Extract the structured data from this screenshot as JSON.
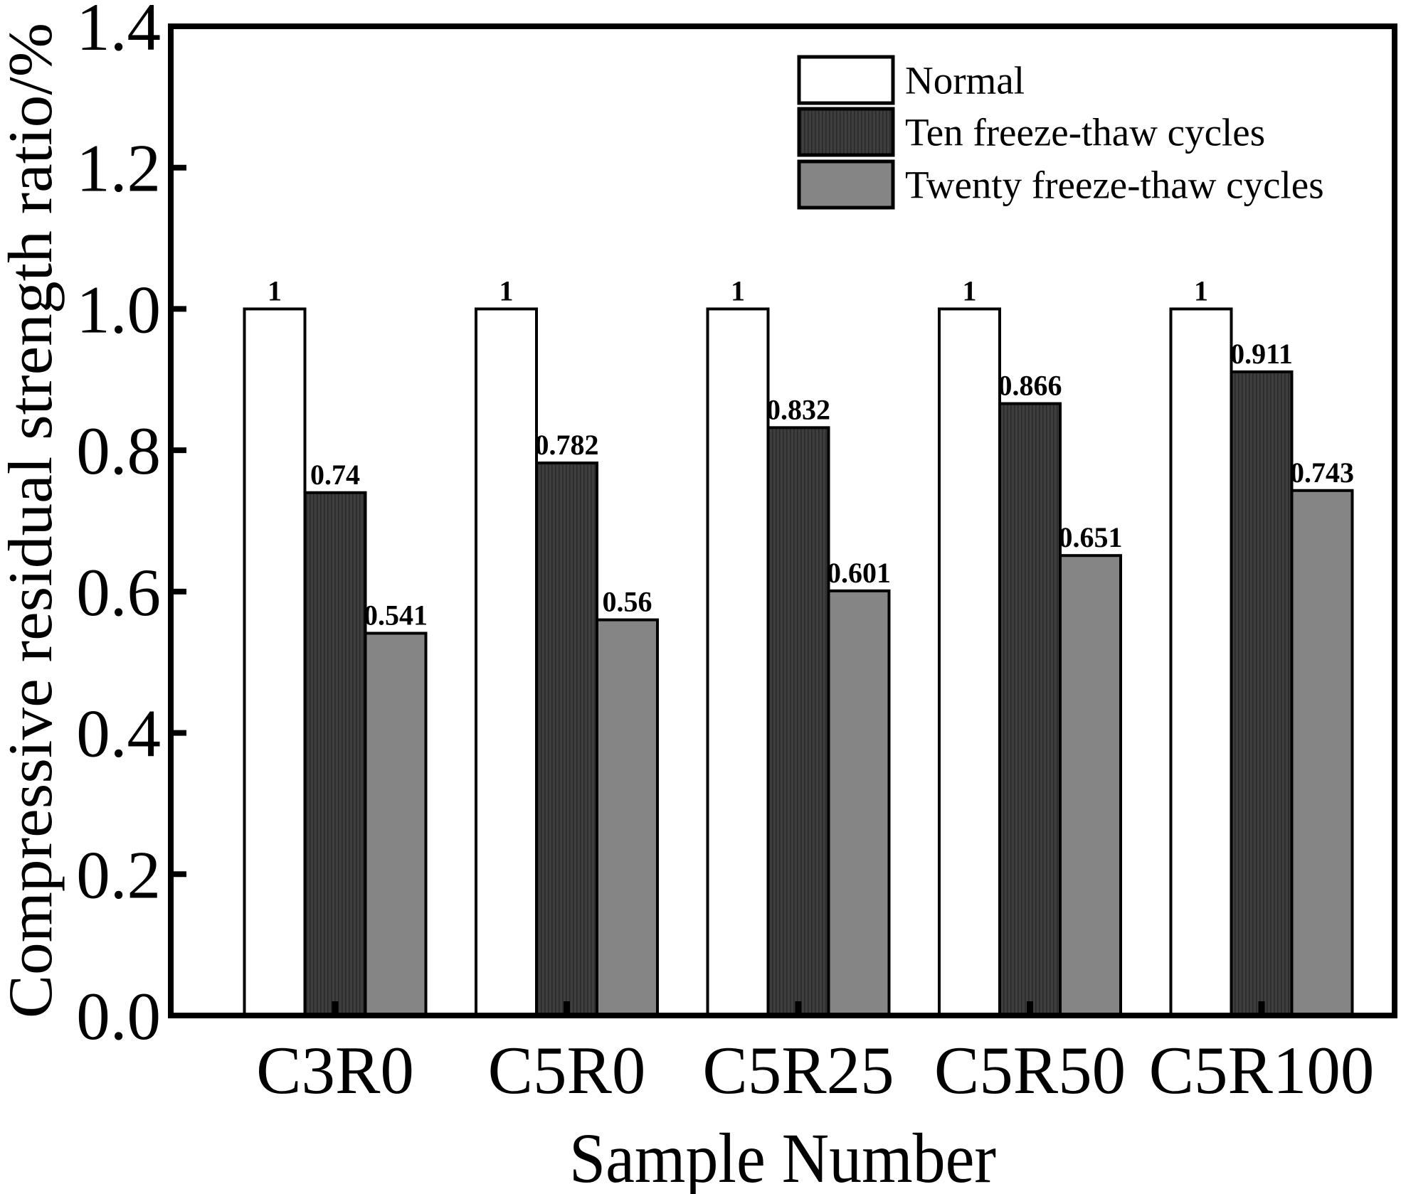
{
  "chart_data": {
    "type": "bar",
    "title": "",
    "xlabel": "Sample Number",
    "ylabel": "Compressive residual strength ratio/%",
    "categories": [
      "C3R0",
      "C5R0",
      "C5R25",
      "C5R50",
      "C5R100"
    ],
    "series": [
      {
        "name": "Normal",
        "fill": "white",
        "values": [
          1,
          1,
          1,
          1,
          1
        ],
        "labels": [
          "1",
          "1",
          "1",
          "1",
          "1"
        ]
      },
      {
        "name": "Ten freeze-thaw cycles",
        "fill": "dark-hatch",
        "values": [
          0.74,
          0.782,
          0.832,
          0.866,
          0.911
        ],
        "labels": [
          "0.74",
          "0.782",
          "0.832",
          "0.866",
          "0.911"
        ]
      },
      {
        "name": "Twenty freeze-thaw cycles",
        "fill": "gray",
        "values": [
          0.541,
          0.56,
          0.601,
          0.651,
          0.743
        ],
        "labels": [
          "0.541",
          "0.56",
          "0.601",
          "0.651",
          "0.743"
        ]
      }
    ],
    "ylim": [
      0,
      1.4
    ],
    "y_ticks": [
      "0.0",
      "0.2",
      "0.4",
      "0.6",
      "0.8",
      "1.0",
      "1.2",
      "1.4"
    ],
    "grid": false,
    "legend_position": "inside-top-right"
  },
  "colors": {
    "background": "#ffffff",
    "edge": "#000000",
    "white_bar": "#ffffff",
    "dark_bar": "#3e3e3e",
    "dark_bar_hatch_line": "#2a2a2a",
    "gray_bar": "#858585"
  }
}
